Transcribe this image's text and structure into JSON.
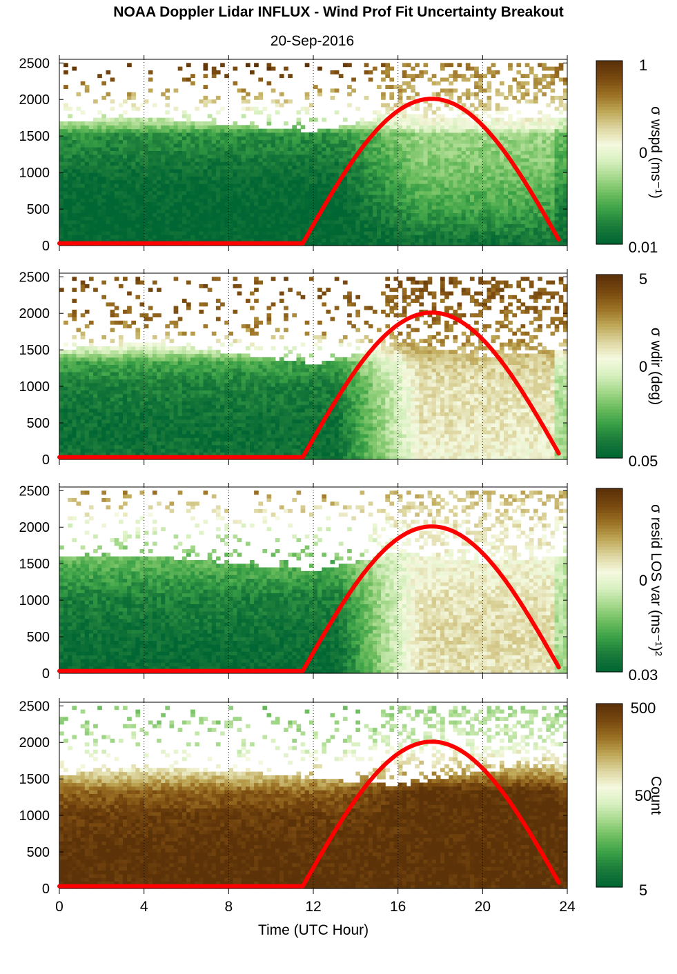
{
  "figure": {
    "title": "NOAA Doppler Lidar INFLUX - Wind Prof Fit Uncertainty Breakout",
    "date": "20-Sep-2016",
    "xlabel": "Time (UTC Hour)",
    "x_ticks": [
      "0",
      "4",
      "8",
      "12",
      "16",
      "20",
      "24"
    ],
    "y_ticks": [
      "0",
      "500",
      "1000",
      "1500",
      "2000",
      "2500"
    ]
  },
  "colors": {
    "curve": "#ff0000",
    "colormap": [
      "#006633",
      "#1a7a3a",
      "#39a046",
      "#6cbd5e",
      "#a6d98c",
      "#d8f0c0",
      "#f5f9e0",
      "#ddd6a0",
      "#bfa858",
      "#9c7225",
      "#7a4a10",
      "#5c3208"
    ]
  },
  "chart_data": [
    {
      "type": "heatmap",
      "panel": "sigma_wspd",
      "colorbar_label": "σ wspd (ms⁻¹)",
      "colorbar_ticks": [
        "1",
        "0",
        "0.01"
      ],
      "x": "UTC hour",
      "xlim": [
        0,
        24
      ],
      "ylim": [
        0,
        2550
      ],
      "heights_m": [
        0,
        500,
        1000,
        1500,
        1600,
        2000,
        2500
      ],
      "level_by_height_early": [
        0.0,
        0.0,
        0.05,
        0.15,
        0.3,
        0.7,
        1.0
      ],
      "level_by_height_late": [
        0.05,
        0.2,
        0.3,
        0.35,
        0.5,
        0.7,
        0.8
      ],
      "mixing_layer_top_m": {
        "hour": [
          0,
          4,
          8,
          12,
          16,
          20,
          23.8
        ],
        "height": [
          1600,
          1650,
          1550,
          1450,
          1700,
          1600,
          1650
        ]
      },
      "sun_curve": {
        "hour": [
          0,
          11.5,
          17.6,
          23.7
        ],
        "height": [
          30,
          30,
          2010,
          30
        ]
      }
    },
    {
      "type": "heatmap",
      "panel": "sigma_wdir",
      "colorbar_label": "σ wdir (deg)",
      "colorbar_ticks": [
        "5",
        "0",
        "0.05"
      ],
      "x": "UTC hour",
      "xlim": [
        0,
        24
      ],
      "ylim": [
        0,
        2550
      ],
      "heights_m": [
        0,
        500,
        1000,
        1300,
        1700,
        2000,
        2500
      ],
      "level_by_height_early": [
        0.05,
        0.05,
        0.1,
        0.2,
        0.75,
        0.85,
        0.9
      ],
      "level_by_height_late": [
        0.55,
        0.6,
        0.6,
        0.65,
        0.8,
        0.85,
        0.9
      ],
      "mixing_layer_top_m": {
        "hour": [
          0,
          4,
          8,
          12,
          16,
          20,
          23.8
        ],
        "height": [
          1400,
          1500,
          1350,
          1200,
          1500,
          1300,
          1400
        ]
      },
      "sun_curve": {
        "hour": [
          0,
          11.5,
          17.6,
          23.7
        ],
        "height": [
          30,
          30,
          2010,
          30
        ]
      }
    },
    {
      "type": "heatmap",
      "panel": "sigma_resid_LOS_var",
      "colorbar_label": "σ resid LOS var (ms⁻¹)²",
      "colorbar_ticks": [
        "",
        "0",
        "0.03"
      ],
      "x": "UTC hour",
      "xlim": [
        0,
        24
      ],
      "ylim": [
        0,
        2550
      ],
      "heights_m": [
        0,
        500,
        1000,
        1500,
        2000,
        2500
      ],
      "level_by_height_early": [
        0.02,
        0.05,
        0.1,
        0.25,
        0.5,
        0.8
      ],
      "level_by_height_late": [
        0.6,
        0.62,
        0.6,
        0.55,
        0.6,
        0.7
      ],
      "mixing_layer_top_m": {
        "hour": [
          0,
          4,
          8,
          12,
          16,
          20,
          23.8
        ],
        "height": [
          1500,
          1500,
          1400,
          1300,
          1550,
          1400,
          1500
        ]
      },
      "sun_curve": {
        "hour": [
          0,
          11.5,
          17.6,
          23.7
        ],
        "height": [
          30,
          30,
          2010,
          30
        ]
      }
    },
    {
      "type": "heatmap",
      "panel": "count",
      "colorbar_label": "Count",
      "colorbar_ticks": [
        "500",
        "50",
        "5"
      ],
      "x": "UTC hour",
      "xlim": [
        0,
        24
      ],
      "ylim": [
        0,
        2550
      ],
      "heights_m": [
        0,
        500,
        1000,
        1300,
        1600,
        2000,
        2500
      ],
      "level_by_height_early": [
        1.0,
        1.0,
        0.95,
        0.85,
        0.6,
        0.4,
        0.3
      ],
      "level_by_height_late": [
        1.0,
        1.0,
        1.0,
        1.0,
        0.7,
        0.45,
        0.35
      ],
      "mixing_layer_top_m": {
        "hour": [
          0,
          4,
          8,
          12,
          16,
          20,
          23.8
        ],
        "height": [
          1450,
          1550,
          1500,
          1400,
          1300,
          1500,
          1600
        ]
      },
      "sun_curve": {
        "hour": [
          0,
          11.5,
          17.6,
          23.7
        ],
        "height": [
          30,
          30,
          2010,
          30
        ]
      }
    }
  ]
}
